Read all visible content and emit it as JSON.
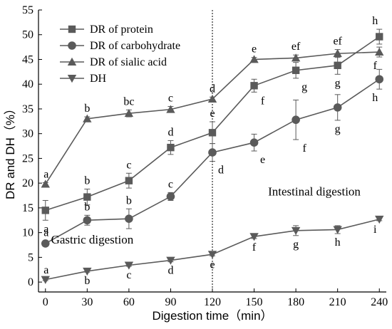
{
  "chart_data": {
    "type": "line",
    "xlabel": "Digestion time（min）",
    "ylabel": "DR and DH（%）",
    "x": [
      0,
      30,
      60,
      90,
      120,
      150,
      180,
      210,
      240
    ],
    "xlim": [
      -5,
      245
    ],
    "ylim": [
      -2,
      55
    ],
    "xticks": [
      0,
      30,
      60,
      90,
      120,
      150,
      180,
      210,
      240
    ],
    "yticks": [
      0,
      5,
      10,
      15,
      20,
      25,
      30,
      35,
      40,
      45,
      50,
      55
    ],
    "grid": false,
    "legend": "top-left",
    "divider_x": 120,
    "annotations": [
      {
        "text": "Gastric digestion",
        "x": 4,
        "y": 7.8
      },
      {
        "text": "Intestinal digestion",
        "x": 160,
        "y": 17.5
      }
    ],
    "series": [
      {
        "name": "DR of protein",
        "marker": "square",
        "values": [
          14.5,
          17.2,
          20.5,
          27.2,
          30.2,
          39.7,
          42.8,
          43.8,
          49.6
        ],
        "errors": [
          2.0,
          1.6,
          1.5,
          1.4,
          2.2,
          1.3,
          1.6,
          1.8,
          1.5
        ],
        "letters": [
          "a",
          "b",
          "c",
          "d",
          "e",
          "f",
          "g",
          "g",
          "h"
        ],
        "letter_pos": [
          "below",
          "above",
          "above",
          "above",
          "above",
          "below",
          "below",
          "below",
          "above"
        ]
      },
      {
        "name": "DR of carbohydrate",
        "marker": "circle",
        "values": [
          7.8,
          12.5,
          12.8,
          17.3,
          26.2,
          28.2,
          32.8,
          35.3,
          41.0
        ],
        "errors": [
          0.5,
          1.0,
          2.0,
          0.8,
          1.8,
          1.7,
          4.0,
          2.6,
          2.0
        ],
        "letters": [
          "a",
          "b",
          "b",
          "c",
          "d",
          "e",
          "f",
          "g",
          "h"
        ],
        "letter_pos": [
          "above",
          "above",
          "above",
          "above",
          "below",
          "below",
          "below",
          "below",
          "below"
        ]
      },
      {
        "name": "DR of sialic acid",
        "marker": "triangle-up",
        "values": [
          19.8,
          33.0,
          34.1,
          34.9,
          37.0,
          45.0,
          45.3,
          46.2,
          46.5
        ],
        "errors": [
          0.3,
          0.4,
          0.7,
          0.6,
          0.4,
          0.4,
          0.6,
          0.8,
          1.0
        ],
        "letters": [
          "a",
          "b",
          "bc",
          "c",
          "d",
          "e",
          "ef",
          "ef",
          "f"
        ],
        "letter_pos": [
          "above",
          "above",
          "above",
          "above",
          "above",
          "above",
          "above",
          "above",
          "below"
        ]
      },
      {
        "name": "DH",
        "marker": "triangle-down",
        "values": [
          0.5,
          2.2,
          3.4,
          4.4,
          5.6,
          9.2,
          10.4,
          10.6,
          12.7
        ],
        "errors": [
          0.2,
          0.2,
          0.2,
          0.3,
          0.3,
          0.4,
          1.0,
          0.8,
          0.3
        ],
        "letters": [
          "a",
          "b",
          "c",
          "d",
          "e",
          "f",
          "g",
          "h",
          "i"
        ],
        "letter_pos": [
          "above",
          "below",
          "below",
          "below",
          "below",
          "below",
          "below",
          "below",
          "below"
        ]
      }
    ]
  }
}
